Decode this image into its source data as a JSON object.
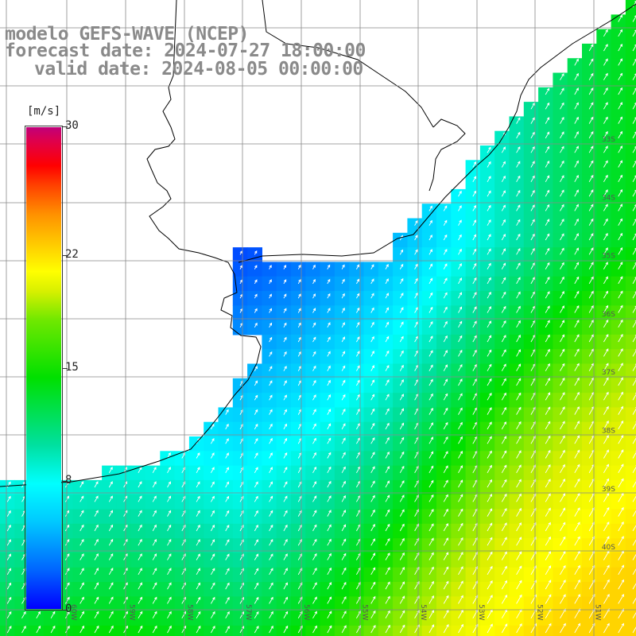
{
  "header": {
    "line1": "modelo GEFS-WAVE (NCEP)",
    "line2": "forecast date: 2024-07-27 18:00:00",
    "line3": "valid date: 2024-08-05 00:00:00"
  },
  "colorbar": {
    "units": "[m/s]",
    "ticks": [
      "30",
      "22",
      "15",
      "8",
      "0"
    ],
    "tick_values": [
      30,
      22,
      15,
      8,
      0
    ],
    "range": [
      0,
      30
    ]
  },
  "map": {
    "lon_labels": [
      "60W",
      "59W",
      "58W",
      "57W",
      "56W",
      "55W",
      "54W",
      "53W",
      "52W",
      "51W"
    ],
    "lat_labels": [
      "33S",
      "34S",
      "35S",
      "36S",
      "37S",
      "38S",
      "39S",
      "40S"
    ],
    "colors": {
      "land": "#ffffff",
      "coast": "#000000",
      "grid": "#888888",
      "arrow": "#ffffff"
    }
  }
}
